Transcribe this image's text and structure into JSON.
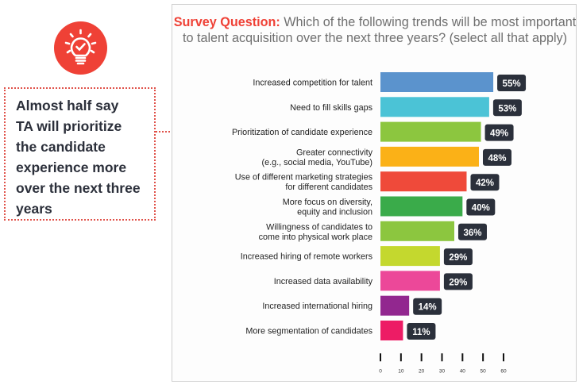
{
  "icon": {
    "name": "lightbulb-check-icon",
    "color": "#ef4136"
  },
  "callout": {
    "lines": [
      "Almost half say",
      "TA will prioritize",
      "the candidate",
      "experience more",
      "over the next three",
      "years"
    ],
    "highlight_color": "#ef4136"
  },
  "chart_data": {
    "type": "bar",
    "orientation": "horizontal",
    "title_lead": "Survey Question:",
    "title": "Which of the following trends will be most important to talent acquisition over the next three years? (select all that apply)",
    "xlabel": "",
    "ylabel": "",
    "xlim": [
      0,
      60
    ],
    "xticks": [
      0,
      10,
      20,
      30,
      40,
      50,
      60
    ],
    "unit": "%",
    "categories": [
      [
        "Increased competition for talent"
      ],
      [
        "Need to fill skills gaps"
      ],
      [
        "Prioritization of candidate experience"
      ],
      [
        "Greater connectivity",
        "(e.g., social media, YouTube)"
      ],
      [
        "Use of different marketing strategies",
        "for different candidates"
      ],
      [
        "More focus on diversity,",
        "equity and inclusion"
      ],
      [
        "Willingness of candidates to",
        "come into physical work place"
      ],
      [
        "Increased hiring of remote workers"
      ],
      [
        "Increased data availability"
      ],
      [
        "Increased international hiring"
      ],
      [
        "More segmentation of candidates"
      ]
    ],
    "values": [
      55,
      53,
      49,
      48,
      42,
      40,
      36,
      29,
      29,
      14,
      11
    ],
    "colors": [
      "#5b93cd",
      "#4bc3d6",
      "#8cc63f",
      "#fbb117",
      "#ef4a3a",
      "#3aab4a",
      "#8cc63f",
      "#c4d82e",
      "#ec4899",
      "#92278f",
      "#ed1c65"
    ],
    "label_bg": "#2b303b",
    "highlighted_index": 2,
    "grid": false,
    "legend": "none"
  }
}
